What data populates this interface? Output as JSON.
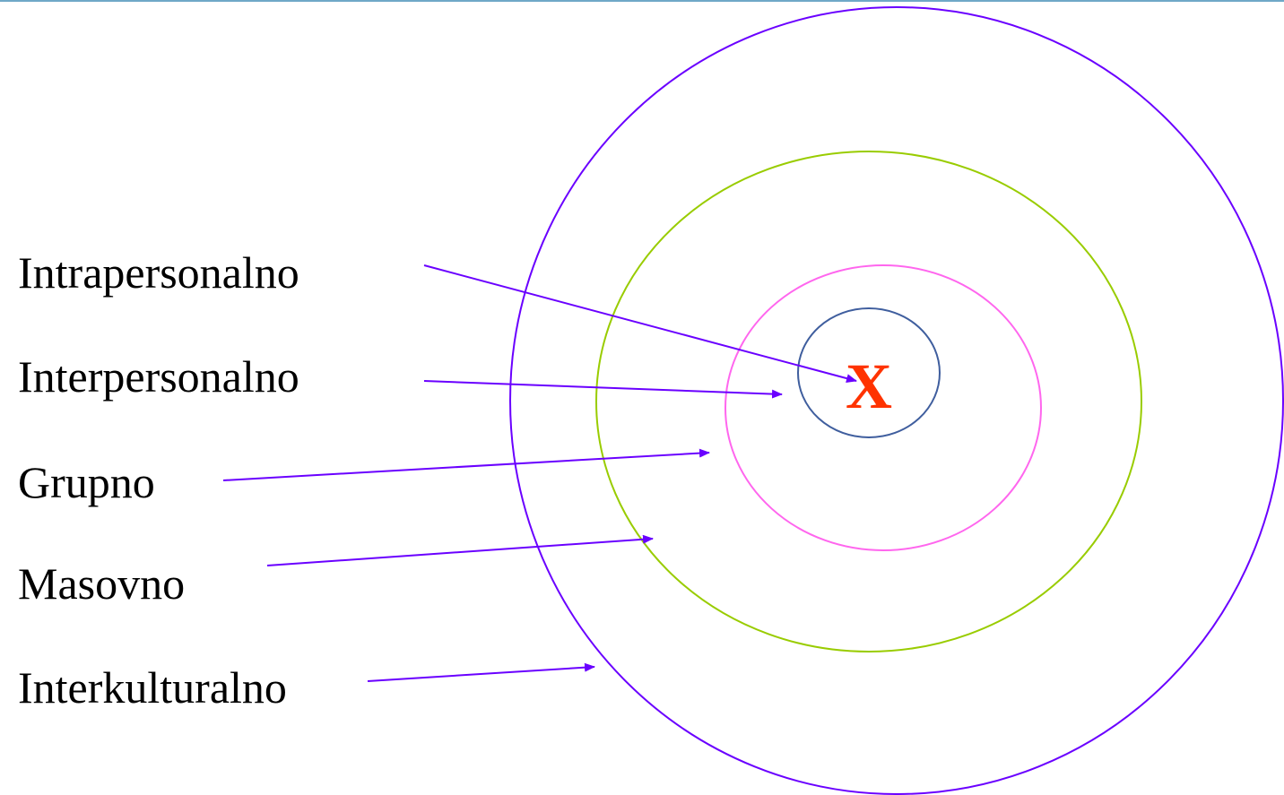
{
  "diagram": {
    "center_mark": "X",
    "labels": [
      "Intrapersonalno",
      "Interpersonalno",
      "Grupno",
      "Masovno",
      "Interkulturalno"
    ]
  },
  "colors": {
    "center_mark": "#ff3300",
    "arrows": "#6a00ff",
    "circle_innermost": "#3f5e9e",
    "circle_second": "#ff66ee",
    "circle_third": "#99cc00",
    "circle_outer": "#6a00ff",
    "top_rule": "#6fa8c7"
  }
}
